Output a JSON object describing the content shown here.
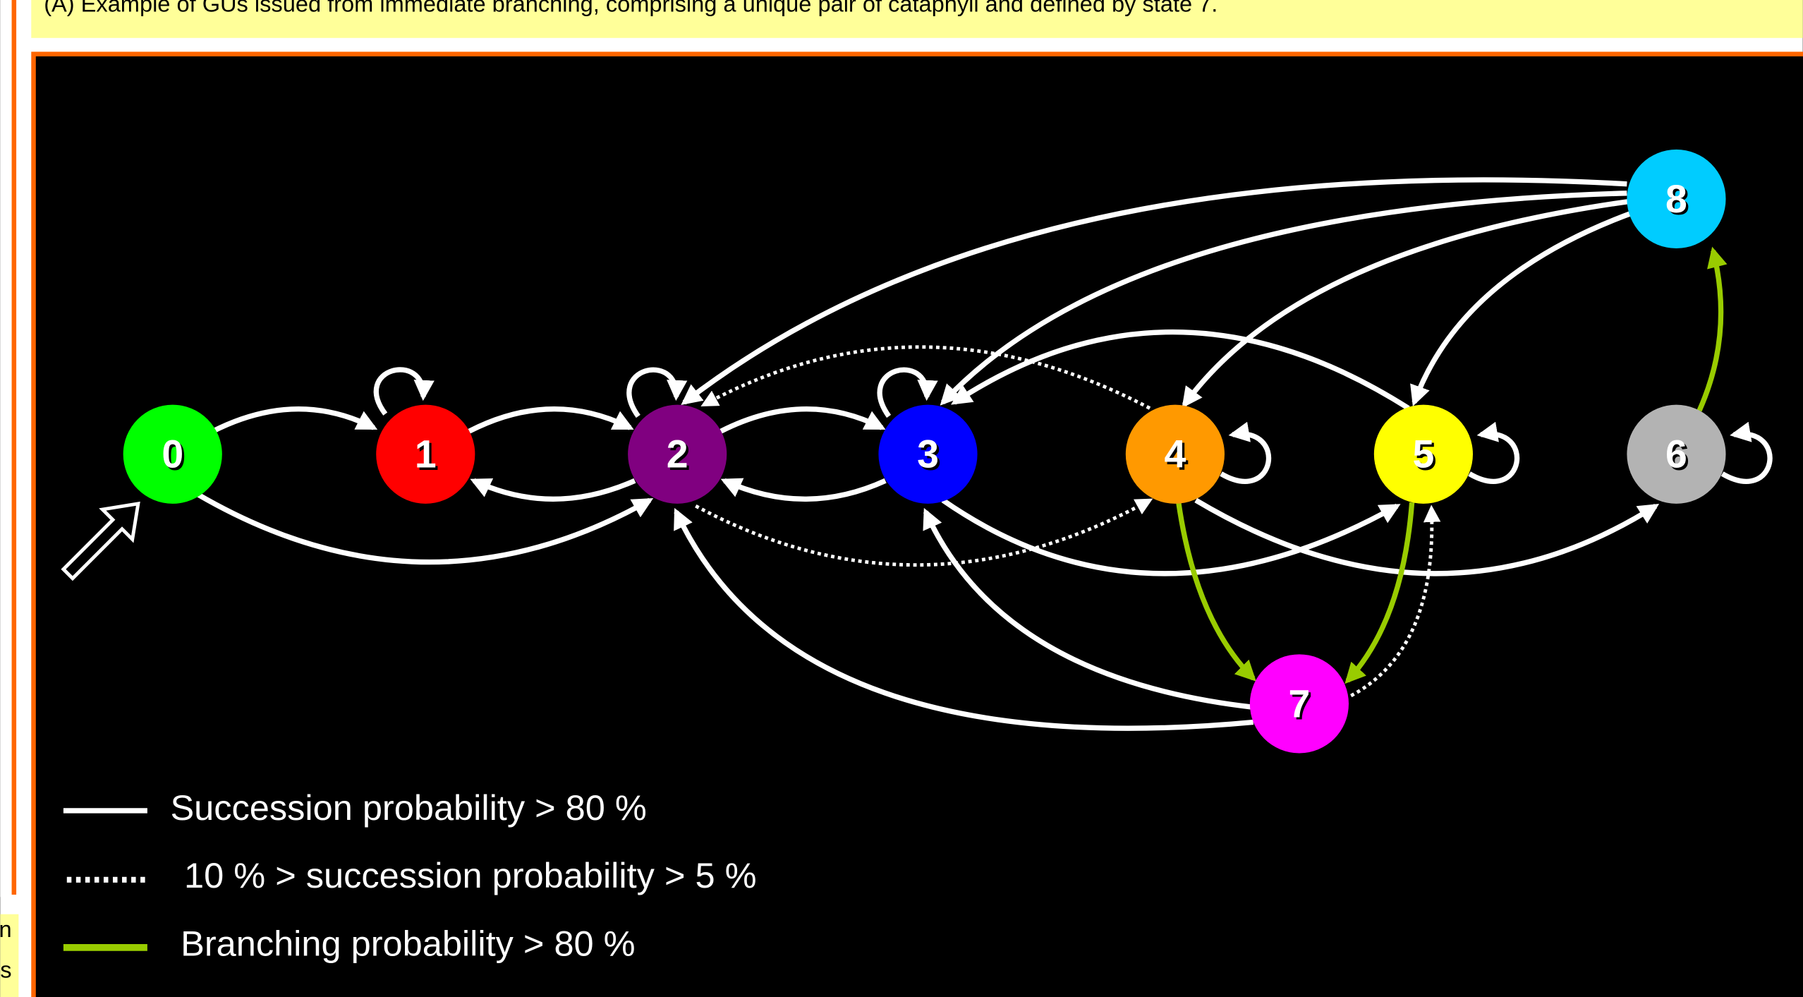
{
  "caption": "(A) Example of GUs issued from immediate branching, comprising a unique pair of cataphyll and defined by state 7.",
  "side_text": [
    "n",
    "s"
  ],
  "nodes": [
    {
      "label": "0",
      "color": "#00ff00"
    },
    {
      "label": "1",
      "color": "#ff0000"
    },
    {
      "label": "2",
      "color": "#800080"
    },
    {
      "label": "3",
      "color": "#0000ff"
    },
    {
      "label": "4",
      "color": "#ff9900"
    },
    {
      "label": "5",
      "color": "#ffff00"
    },
    {
      "label": "6",
      "color": "#b3b3b3"
    },
    {
      "label": "7",
      "color": "#ff00ff"
    },
    {
      "label": "8",
      "color": "#00ccff"
    }
  ],
  "legend": [
    {
      "label": "Succession probability > 80 %"
    },
    {
      "label": "10 % > succession probability > 5 %"
    },
    {
      "label": "Branching probability > 80 %"
    }
  ]
}
